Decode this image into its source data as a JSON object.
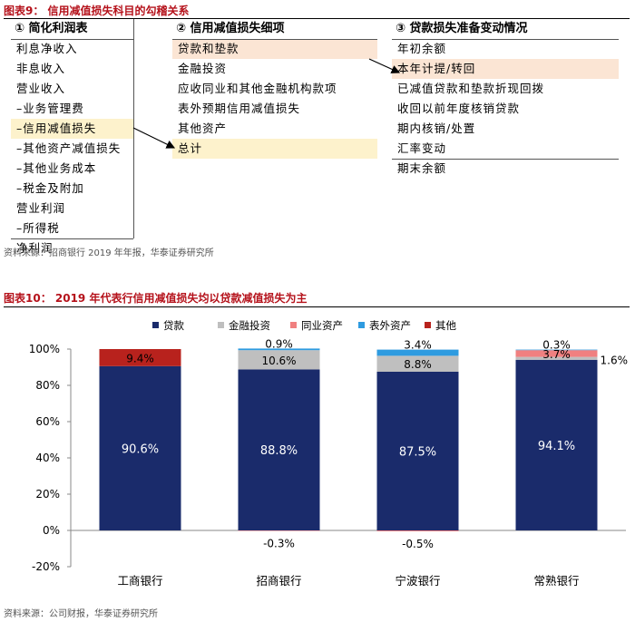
{
  "figure9": {
    "title": "图表9：  信用减值损失科目的勾稽关系",
    "source": "资料来源：招商银行 2019 年年报，华泰证券研究所",
    "columns": [
      {
        "header": "① 简化利润表",
        "items": [
          "利息净收入",
          "非息收入",
          "营业收入",
          "–业务管理费",
          "–信用减值损失",
          "–其他资产减值损失",
          "–其他业务成本",
          "–税金及附加",
          "营业利润",
          "–所得税",
          "净利润"
        ]
      },
      {
        "header": "② 信用减值损失细项",
        "items": [
          "贷款和垫款",
          "金融投资",
          "应收同业和其他金融机构款项",
          "表外预期信用减值损失",
          "其他资产",
          "总计"
        ]
      },
      {
        "header": "③ 贷款损失准备变动情况",
        "items": [
          "年初余额",
          "本年计提/转回",
          "已减值贷款和垫款折现回拨",
          "收回以前年度核销贷款",
          "期内核销/处置",
          "汇率变动",
          "期末余额"
        ]
      }
    ]
  },
  "figure10": {
    "title": "图表10：  2019 年代表行信用减值损失均以贷款减值损失为主",
    "source": "资料来源：公司财报，华泰证券研究所"
  },
  "chart_data": {
    "type": "bar",
    "stacked": true,
    "categories": [
      "工商银行",
      "招商银行",
      "宁波银行",
      "常熟银行"
    ],
    "series": [
      {
        "name": "贷款",
        "color": "#1a2b6b",
        "values": [
          90.6,
          88.8,
          87.5,
          94.1
        ]
      },
      {
        "name": "金融投资",
        "color": "#bfbfbf",
        "values": [
          0,
          10.6,
          8.8,
          1.6
        ]
      },
      {
        "name": "同业资产",
        "color": "#f08080",
        "values": [
          0,
          -0.3,
          -0.5,
          3.7
        ]
      },
      {
        "name": "表外资产",
        "color": "#2e9be0",
        "values": [
          0,
          0.9,
          3.4,
          0.3
        ]
      },
      {
        "name": "其他",
        "color": "#b8221d",
        "values": [
          9.4,
          0,
          0,
          0
        ]
      }
    ],
    "data_labels": [
      {
        "category": "工商银行",
        "series": "贷款",
        "text": "90.6%"
      },
      {
        "category": "工商银行",
        "series": "其他",
        "text": "9.4%"
      },
      {
        "category": "招商银行",
        "series": "贷款",
        "text": "88.8%"
      },
      {
        "category": "招商银行",
        "series": "金融投资",
        "text": "10.6%"
      },
      {
        "category": "招商银行",
        "series": "表外资产",
        "text": "0.9%"
      },
      {
        "category": "招商银行",
        "series": "同业资产",
        "text": "-0.3%"
      },
      {
        "category": "宁波银行",
        "series": "贷款",
        "text": "87.5%"
      },
      {
        "category": "宁波银行",
        "series": "金融投资",
        "text": "8.8%"
      },
      {
        "category": "宁波银行",
        "series": "表外资产",
        "text": "3.4%"
      },
      {
        "category": "宁波银行",
        "series": "同业资产",
        "text": "-0.5%"
      },
      {
        "category": "常熟银行",
        "series": "贷款",
        "text": "94.1%"
      },
      {
        "category": "常熟银行",
        "series": "金融投资",
        "text": "1.6%"
      },
      {
        "category": "常熟银行",
        "series": "同业资产",
        "text": "3.7%"
      },
      {
        "category": "常熟银行",
        "series": "表外资产",
        "text": "0.3%"
      }
    ],
    "ylim": [
      -20,
      100
    ],
    "yticks": [
      "-20%",
      "0%",
      "20%",
      "40%",
      "60%",
      "80%",
      "100%"
    ],
    "grid": false,
    "legend_position": "top"
  }
}
